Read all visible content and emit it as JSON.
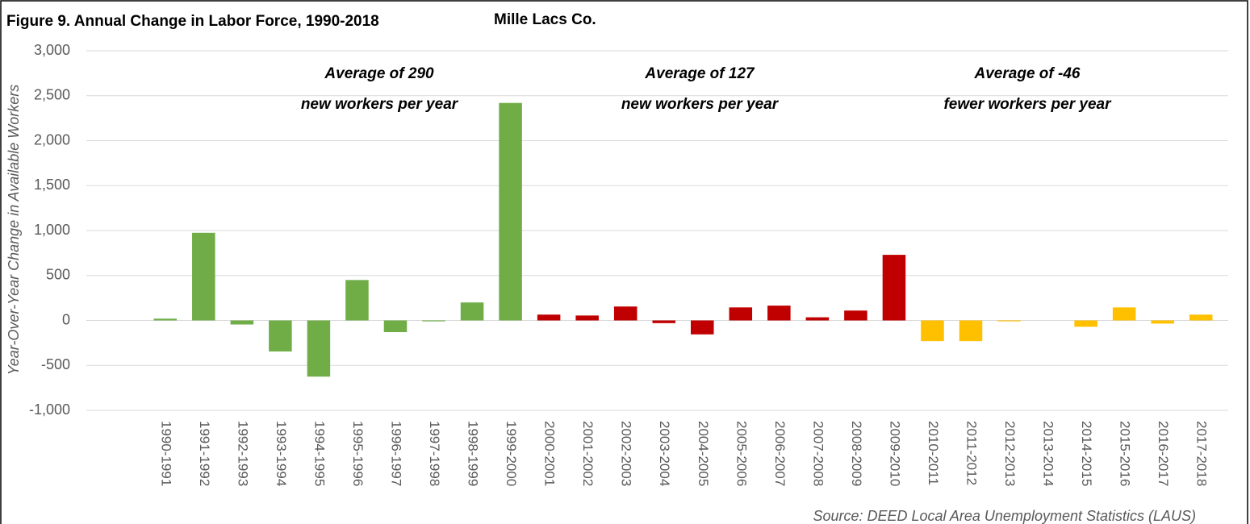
{
  "chart_data": {
    "type": "bar",
    "title": "Figure 9. Annual Change in Labor Force, 1990-2018",
    "subtitle": "Mille Lacs Co.",
    "y_label": "Year-Over-Year Change in Available Workers",
    "source": "Source: DEED Local Area Unemployment Statistics (LAUS)",
    "annotations": [
      {
        "line1": "Average of  290",
        "line2": "new workers   per year"
      },
      {
        "line1": "Average of  127",
        "line2": "new workers   per year"
      },
      {
        "line1": "Average of  -46",
        "line2": "fewer workers   per year"
      }
    ],
    "categories": [
      "1990-1991",
      "1991-1992",
      "1992-1993",
      "1993-1994",
      "1994-1995",
      "1995-1996",
      "1996-1997",
      "1997-1998",
      "1998-1999",
      "1999-2000",
      "2000-2001",
      "2001-2002",
      "2002-2003",
      "2003-2004",
      "2004-2005",
      "2005-2006",
      "2006-2007",
      "2007-2008",
      "2008-2009",
      "2009-2010",
      "2010-2011",
      "2011-2012",
      "2012-2013",
      "2013-2014",
      "2014-2015",
      "2015-2016",
      "2016-2017",
      "2017-2018"
    ],
    "values": [
      20,
      975,
      -45,
      -345,
      -625,
      450,
      -130,
      -10,
      200,
      2420,
      65,
      55,
      155,
      -30,
      -155,
      145,
      165,
      35,
      110,
      730,
      -230,
      -230,
      -10,
      0,
      -70,
      145,
      -35,
      65
    ],
    "colors": [
      "#70ad47",
      "#70ad47",
      "#70ad47",
      "#70ad47",
      "#70ad47",
      "#70ad47",
      "#70ad47",
      "#70ad47",
      "#70ad47",
      "#70ad47",
      "#c00000",
      "#c00000",
      "#c00000",
      "#c00000",
      "#c00000",
      "#c00000",
      "#c00000",
      "#c00000",
      "#c00000",
      "#c00000",
      "#ffc000",
      "#ffc000",
      "#ffc000",
      "#ffc000",
      "#ffc000",
      "#ffc000",
      "#ffc000",
      "#ffc000"
    ],
    "ylim": [
      -1000,
      3000
    ],
    "yticks": [
      {
        "value": -1000,
        "label": "-1,000"
      },
      -500,
      0,
      500,
      {
        "value": 1000,
        "label": "1,000"
      },
      {
        "value": 1500,
        "label": "1,500"
      },
      {
        "value": 2000,
        "label": "2,000"
      },
      {
        "value": 2500,
        "label": "2,500"
      },
      {
        "value": 3000,
        "label": "3,000"
      }
    ],
    "grid": true
  }
}
